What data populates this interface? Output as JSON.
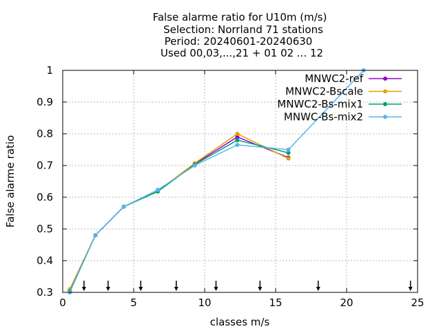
{
  "chart_data": {
    "type": "line",
    "title_lines": [
      "False alarme ratio  for U10m (m/s)",
      "Selection: Norrland     71 stations",
      "Period: 20240601-20240630",
      "Used 00,03,...,21 + 01 02 ... 12"
    ],
    "xlabel": "classes m/s",
    "ylabel": "False alarme ratio",
    "xlim": [
      0,
      25
    ],
    "ylim": [
      0.3,
      1
    ],
    "x_ticks": [
      0,
      5,
      10,
      15,
      20,
      25
    ],
    "x_tick_labels": [
      "0",
      "5",
      "10",
      "15",
      "20",
      "25"
    ],
    "y_ticks": [
      0.3,
      0.4,
      0.5,
      0.6,
      0.7,
      0.8,
      0.9,
      1
    ],
    "y_tick_labels": [
      "0.3",
      "0.4",
      "0.5",
      "0.6",
      "0.7",
      "0.8",
      "0.9",
      "1"
    ],
    "grid": true,
    "legend_position": "top-right",
    "class_markers_x": [
      1.5,
      3.2,
      5.5,
      8.0,
      10.8,
      13.9,
      18.0,
      24.5
    ],
    "series": [
      {
        "name": "MNWC2-ref",
        "color": "#9400d3",
        "x": [
          0.5,
          2.3,
          4.3,
          6.7,
          9.3,
          12.3,
          15.9
        ],
        "y": [
          0.305,
          0.48,
          0.57,
          0.62,
          0.705,
          0.79,
          0.725
        ]
      },
      {
        "name": "MNWC2-Bscale",
        "color": "#e69f00",
        "x": [
          0.5,
          2.3,
          4.3,
          6.7,
          9.3,
          12.3,
          15.9
        ],
        "y": [
          0.31,
          0.48,
          0.57,
          0.62,
          0.707,
          0.8,
          0.722
        ]
      },
      {
        "name": "MNWC2-Bs-mix1",
        "color": "#009e73",
        "x": [
          0.5,
          2.3,
          4.3,
          6.7,
          9.3,
          12.3,
          15.9
        ],
        "y": [
          0.303,
          0.48,
          0.57,
          0.618,
          0.703,
          0.78,
          0.74
        ]
      },
      {
        "name": "MNWC-Bs-mix2",
        "color": "#56b4e9",
        "x": [
          0.5,
          2.3,
          4.3,
          6.7,
          9.3,
          12.3,
          15.9,
          21.2
        ],
        "y": [
          0.3,
          0.48,
          0.57,
          0.623,
          0.7,
          0.765,
          0.75,
          1.0
        ]
      }
    ]
  }
}
